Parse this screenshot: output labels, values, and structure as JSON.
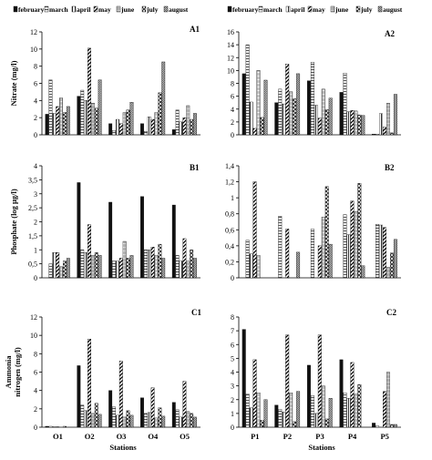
{
  "legend_labels": [
    "february",
    "march",
    "april",
    "may",
    "june",
    "july",
    "august"
  ],
  "chart_data": [
    {
      "type": "bar",
      "panel_label": "A1",
      "ylabel": "Nitrate (mg/l)",
      "ylim": [
        0,
        12
      ],
      "yticks": [
        "0",
        "2",
        "4",
        "6",
        "8",
        "10",
        "12"
      ],
      "ytick_values": [
        0,
        2,
        4,
        6,
        8,
        10,
        12
      ],
      "categories": [
        "O1",
        "O2",
        "O3",
        "O4",
        "O5"
      ],
      "show_categories": false,
      "series": [
        {
          "name": "february",
          "values": [
            2.4,
            4.5,
            1.3,
            1.3,
            0.6
          ]
        },
        {
          "name": "march",
          "values": [
            6.4,
            5.2,
            0.5,
            0.4,
            2.9
          ]
        },
        {
          "name": "april",
          "values": [
            2.5,
            4.0,
            1.8,
            2.1,
            1.5
          ]
        },
        {
          "name": "may",
          "values": [
            3.3,
            10.1,
            1.3,
            1.8,
            2.0
          ]
        },
        {
          "name": "june",
          "values": [
            4.3,
            3.7,
            2.6,
            2.6,
            3.4
          ]
        },
        {
          "name": "july",
          "values": [
            2.6,
            3.1,
            2.9,
            4.9,
            1.8
          ]
        },
        {
          "name": "august",
          "values": [
            3.3,
            6.4,
            3.8,
            8.5,
            2.5
          ]
        }
      ]
    },
    {
      "type": "bar",
      "panel_label": "A2",
      "ylabel": "",
      "ylim": [
        0,
        16
      ],
      "yticks": [
        "0",
        "2",
        "4",
        "6",
        "8",
        "10",
        "12",
        "14",
        "16"
      ],
      "ytick_values": [
        0,
        2,
        4,
        6,
        8,
        10,
        12,
        14,
        16
      ],
      "categories": [
        "P1",
        "P2",
        "P3",
        "P4",
        "P5"
      ],
      "show_categories": false,
      "series": [
        {
          "name": "february",
          "values": [
            9.5,
            5.0,
            8.4,
            6.6,
            0.1
          ]
        },
        {
          "name": "march",
          "values": [
            14.0,
            7.1,
            11.3,
            9.6,
            0.1
          ]
        },
        {
          "name": "april",
          "values": [
            5.1,
            4.8,
            4.6,
            3.6,
            3.3
          ]
        },
        {
          "name": "may",
          "values": [
            1.0,
            11.0,
            2.6,
            3.8,
            1.2
          ]
        },
        {
          "name": "june",
          "values": [
            10.0,
            6.7,
            7.1,
            3.7,
            4.9
          ]
        },
        {
          "name": "july",
          "values": [
            2.7,
            5.6,
            3.9,
            3.1,
            0.3
          ]
        },
        {
          "name": "august",
          "values": [
            8.5,
            9.5,
            5.7,
            3.0,
            6.3
          ]
        }
      ]
    },
    {
      "type": "bar",
      "panel_label": "B1",
      "ylabel": "Phosphate (log μg/l)",
      "ylim": [
        0,
        4
      ],
      "yticks": [
        "0",
        "0,5",
        "1",
        "1,5",
        "2",
        "2,5",
        "3",
        "3,5",
        "4"
      ],
      "ytick_values": [
        0,
        0.5,
        1,
        1.5,
        2,
        2.5,
        3,
        3.5,
        4
      ],
      "categories": [
        "O1",
        "O2",
        "O3",
        "O4",
        "O5"
      ],
      "show_categories": false,
      "series": [
        {
          "name": "february",
          "values": [
            0.0,
            3.4,
            2.7,
            2.9,
            2.6
          ]
        },
        {
          "name": "march",
          "values": [
            0.5,
            1.0,
            0.6,
            1.0,
            0.8
          ]
        },
        {
          "name": "april",
          "values": [
            0.9,
            0.9,
            0.6,
            1.0,
            0.6
          ]
        },
        {
          "name": "may",
          "values": [
            0.9,
            1.9,
            0.7,
            1.1,
            1.4
          ]
        },
        {
          "name": "june",
          "values": [
            0.4,
            0.8,
            1.3,
            0.8,
            0.6
          ]
        },
        {
          "name": "july",
          "values": [
            0.6,
            0.9,
            0.7,
            1.2,
            1.0
          ]
        },
        {
          "name": "august",
          "values": [
            0.7,
            0.8,
            0.8,
            0.7,
            0.7
          ]
        }
      ]
    },
    {
      "type": "bar",
      "panel_label": "B2",
      "ylabel": "",
      "ylim": [
        0,
        1.4
      ],
      "yticks": [
        "0",
        "0,2",
        "0,4",
        "0,6",
        "0,8",
        "1",
        "1,2",
        "1,4"
      ],
      "ytick_values": [
        0,
        0.2,
        0.4,
        0.6,
        0.8,
        1.0,
        1.2,
        1.4
      ],
      "categories": [
        "P1",
        "P2",
        "P3",
        "P4",
        "P5"
      ],
      "show_categories": false,
      "series": [
        {
          "name": "february",
          "values": [
            0.0,
            0.0,
            0.0,
            0.0,
            0.0
          ]
        },
        {
          "name": "march",
          "values": [
            0.47,
            0.77,
            0.61,
            0.79,
            0.67
          ]
        },
        {
          "name": "april",
          "values": [
            0.3,
            0.0,
            0.0,
            0.54,
            0.66
          ]
        },
        {
          "name": "may",
          "values": [
            1.2,
            0.61,
            0.4,
            0.96,
            0.63
          ]
        },
        {
          "name": "june",
          "values": [
            0.28,
            0.0,
            0.76,
            0.83,
            0.13
          ]
        },
        {
          "name": "july",
          "values": [
            0.0,
            0.0,
            1.14,
            1.18,
            0.31
          ]
        },
        {
          "name": "august",
          "values": [
            0.0,
            0.32,
            0.42,
            0.15,
            0.48
          ]
        }
      ]
    },
    {
      "type": "bar",
      "panel_label": "C1",
      "ylabel": "Ammonia nitrogen (mg/l)",
      "ylim": [
        0,
        12
      ],
      "yticks": [
        "0",
        "2",
        "4",
        "6",
        "8",
        "10",
        "12"
      ],
      "ytick_values": [
        0,
        2,
        4,
        6,
        8,
        10,
        12
      ],
      "categories": [
        "O1",
        "O2",
        "O3",
        "O4",
        "O5"
      ],
      "show_categories": true,
      "xlabel": "Stations",
      "series": [
        {
          "name": "february",
          "values": [
            0.1,
            6.7,
            4.0,
            3.2,
            2.7
          ]
        },
        {
          "name": "march",
          "values": [
            0.1,
            2.4,
            2.2,
            1.5,
            1.9
          ]
        },
        {
          "name": "april",
          "values": [
            0.05,
            1.8,
            1.3,
            1.6,
            1.1
          ]
        },
        {
          "name": "may",
          "values": [
            0.05,
            9.6,
            7.2,
            4.3,
            5.0
          ]
        },
        {
          "name": "june",
          "values": [
            0.0,
            1.5,
            1.1,
            1.0,
            1.7
          ]
        },
        {
          "name": "july",
          "values": [
            0.1,
            2.6,
            1.8,
            2.1,
            1.5
          ]
        },
        {
          "name": "august",
          "values": [
            0.0,
            1.4,
            1.3,
            1.2,
            1.1
          ]
        }
      ]
    },
    {
      "type": "bar",
      "panel_label": "C2",
      "ylabel": "",
      "ylim": [
        0,
        8
      ],
      "yticks": [
        "0",
        "1",
        "2",
        "3",
        "4",
        "5",
        "6",
        "7",
        "8"
      ],
      "ytick_values": [
        0,
        1,
        2,
        3,
        4,
        5,
        6,
        7,
        8
      ],
      "categories": [
        "P1",
        "P2",
        "P3",
        "P4",
        "P5"
      ],
      "show_categories": true,
      "xlabel": "Stations",
      "series": [
        {
          "name": "february",
          "values": [
            7.1,
            1.6,
            4.5,
            4.9,
            0.3
          ]
        },
        {
          "name": "march",
          "values": [
            2.4,
            1.3,
            2.3,
            2.5,
            0.1
          ]
        },
        {
          "name": "april",
          "values": [
            1.4,
            1.1,
            1.0,
            2.1,
            0.0
          ]
        },
        {
          "name": "may",
          "values": [
            4.9,
            6.7,
            6.7,
            4.7,
            2.6
          ]
        },
        {
          "name": "june",
          "values": [
            2.5,
            2.5,
            3.0,
            2.4,
            4.0
          ]
        },
        {
          "name": "july",
          "values": [
            0.5,
            0.4,
            0.6,
            3.1,
            0.2
          ]
        },
        {
          "name": "august",
          "values": [
            2.0,
            2.6,
            2.1,
            0.0,
            0.2
          ]
        }
      ]
    }
  ]
}
